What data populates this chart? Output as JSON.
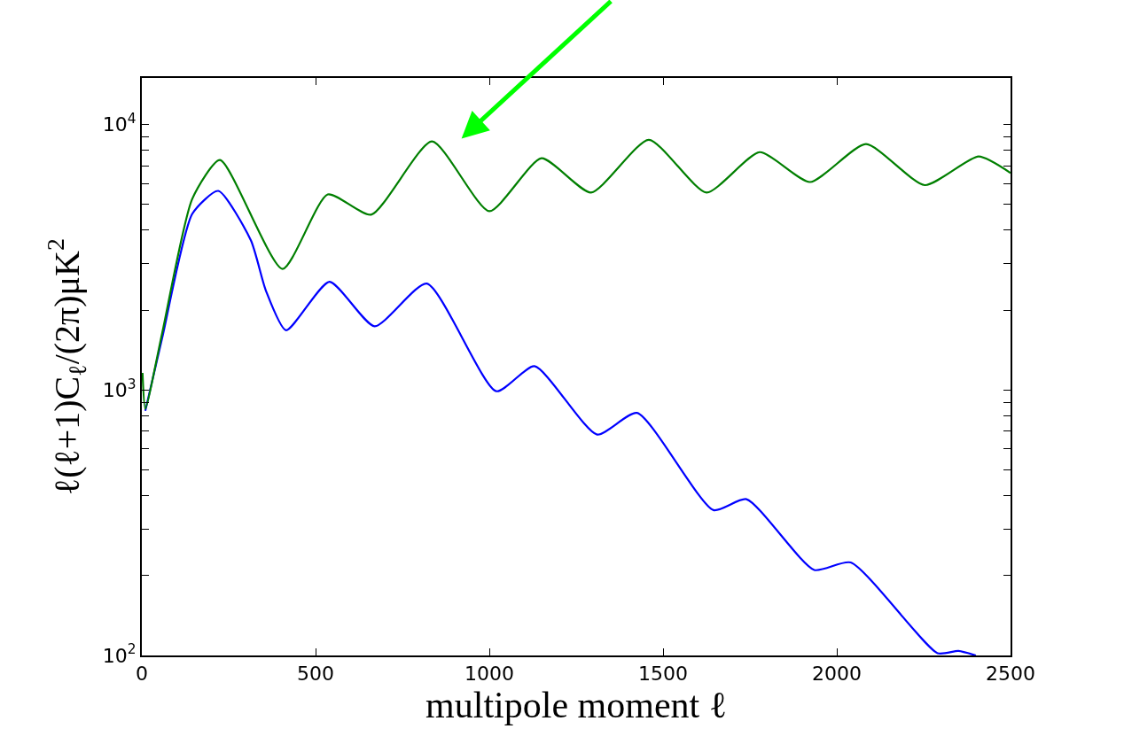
{
  "chart_data": {
    "type": "line",
    "xlabel": "multipole moment ℓ",
    "ylabel": "ℓ(ℓ+1)C$_{ℓ}$/(2π)μK$^{2}$",
    "log": "y",
    "marker": "none",
    "line_style": "solid",
    "xlim": [
      0,
      2500
    ],
    "xticks": [
      0,
      500,
      1000,
      1500,
      2000,
      2500
    ],
    "ylim": [
      100,
      15000
    ],
    "yticks": [
      {
        "value": 100,
        "label": "10$^{2}$"
      },
      {
        "value": 200,
        "label": null
      },
      {
        "value": 300,
        "label": null
      },
      {
        "value": 400,
        "label": null
      },
      {
        "value": 500,
        "label": null
      },
      {
        "value": 600,
        "label": null
      },
      {
        "value": 700,
        "label": null
      },
      {
        "value": 800,
        "label": null
      },
      {
        "value": 900,
        "label": null
      },
      {
        "value": 1000,
        "label": "10$^{3}$"
      },
      {
        "value": 2000,
        "label": null
      },
      {
        "value": 3000,
        "label": null
      },
      {
        "value": 4000,
        "label": null
      },
      {
        "value": 5000,
        "label": null
      },
      {
        "value": 6000,
        "label": null
      },
      {
        "value": 7000,
        "label": null
      },
      {
        "value": 8000,
        "label": null
      },
      {
        "value": 9000,
        "label": null
      },
      {
        "value": 10000,
        "label": "10$^{4}$"
      }
    ],
    "series": [
      {
        "color": "#0000ff",
        "x": [
          10,
          59,
          145,
          220,
          314,
          357,
          415,
          540,
          670,
          820,
          1020,
          1130,
          1310,
          1425,
          1645,
          1740,
          1935,
          2040,
          2290,
          2350,
          2400
        ],
        "values": [
          835,
          1580,
          4610,
          5630,
          3660,
          2370,
          1680,
          2560,
          1740,
          2520,
          990,
          1230,
          680,
          820,
          353,
          388,
          210,
          224,
          102,
          104,
          100
        ]
      },
      {
        "color": "#007f00",
        "x": [
          2,
          10,
          59,
          145,
          225,
          405,
          535,
          660,
          835,
          1000,
          1150,
          1293,
          1459,
          1625,
          1778,
          1923,
          2084,
          2253,
          2408,
          2500
        ],
        "values": [
          1160,
          850,
          1650,
          5250,
          7360,
          2860,
          5460,
          4580,
          8650,
          4720,
          7470,
          5550,
          8770,
          5550,
          7880,
          6080,
          8450,
          5920,
          7590,
          6580
        ]
      }
    ]
  }
}
